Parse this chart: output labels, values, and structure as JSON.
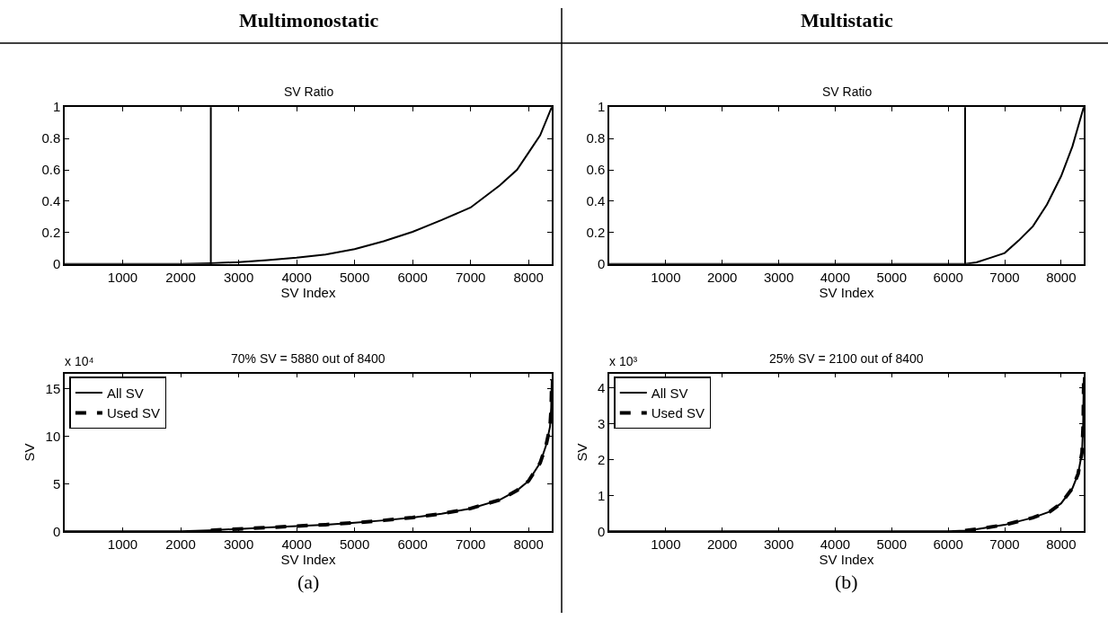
{
  "chart_data": [
    {
      "type": "line",
      "title": "SV Ratio",
      "xlabel": "SV Index",
      "xlim": [
        0,
        8400
      ],
      "xticks": [
        1000,
        2000,
        3000,
        4000,
        5000,
        6000,
        7000,
        8000
      ],
      "ylim": [
        0,
        1
      ],
      "yticks": [
        0,
        0.2,
        0.4,
        0.6,
        0.8,
        1
      ],
      "annotations": [
        "Multimonostatic"
      ],
      "ref_lines": [
        {
          "axis": "x",
          "value": 2520,
          "color": "#000000"
        }
      ],
      "series": [
        {
          "color": "#000000",
          "x": [
            0,
            2000,
            2520,
            3000,
            3500,
            4000,
            4500,
            5000,
            5500,
            6000,
            6500,
            7000,
            7500,
            7800,
            8000,
            8200,
            8400
          ],
          "values": [
            0,
            0,
            0.005,
            0.012,
            0.025,
            0.04,
            0.06,
            0.095,
            0.145,
            0.205,
            0.28,
            0.36,
            0.5,
            0.6,
            0.71,
            0.82,
            1
          ]
        }
      ]
    },
    {
      "type": "line",
      "title": "SV Ratio",
      "xlabel": "SV Index",
      "xlim": [
        0,
        8400
      ],
      "xticks": [
        1000,
        2000,
        3000,
        4000,
        5000,
        6000,
        7000,
        8000
      ],
      "ylim": [
        0,
        1
      ],
      "yticks": [
        0,
        0.2,
        0.4,
        0.6,
        0.8,
        1
      ],
      "annotations": [
        "Multistatic"
      ],
      "ref_lines": [
        {
          "axis": "x",
          "value": 6300,
          "color": "#000000"
        }
      ],
      "series": [
        {
          "color": "#000000",
          "x": [
            0,
            6000,
            6300,
            6500,
            6750,
            7000,
            7250,
            7500,
            7750,
            8000,
            8200,
            8400
          ],
          "values": [
            0,
            0,
            0,
            0.01,
            0.04,
            0.07,
            0.15,
            0.24,
            0.38,
            0.56,
            0.75,
            1
          ]
        }
      ]
    },
    {
      "type": "line",
      "title": "70% SV = 5880 out of 8400",
      "xlabel": "SV Index",
      "ylabel": "SV",
      "xlim": [
        0,
        8400
      ],
      "xticks": [
        1000,
        2000,
        3000,
        4000,
        5000,
        6000,
        7000,
        8000
      ],
      "ylim": [
        0,
        16.6
      ],
      "yticks": [
        0,
        5,
        10,
        15
      ],
      "legend": "top left",
      "annotations": [
        "x 10⁴",
        "(a)"
      ],
      "series": [
        {
          "name": "All SV",
          "color": "#000000",
          "line_style": "solid",
          "x": [
            0,
            2000,
            2500,
            3000,
            3500,
            4000,
            4500,
            5000,
            5500,
            6000,
            6500,
            7000,
            7500,
            7800,
            8000,
            8200,
            8300,
            8370,
            8390,
            8400
          ],
          "values": [
            0,
            0,
            0.1,
            0.25,
            0.4,
            0.55,
            0.7,
            0.9,
            1.15,
            1.45,
            1.85,
            2.4,
            3.3,
            4.3,
            5.3,
            7.2,
            9,
            11,
            13,
            16
          ]
        },
        {
          "name": "Used SV",
          "color": "#000000",
          "line_style": "dashed",
          "x": [
            2520,
            3000,
            3500,
            4000,
            4500,
            5000,
            5500,
            6000,
            6500,
            7000,
            7500,
            7800,
            8000,
            8200,
            8300,
            8370,
            8390,
            8400
          ],
          "values": [
            0.1,
            0.25,
            0.4,
            0.55,
            0.7,
            0.9,
            1.15,
            1.45,
            1.85,
            2.4,
            3.3,
            4.3,
            5.3,
            7.2,
            9,
            11,
            13,
            16
          ]
        }
      ]
    },
    {
      "type": "line",
      "title": "25% SV = 2100 out of 8400",
      "xlabel": "SV Index",
      "ylabel": "SV",
      "xlim": [
        0,
        8400
      ],
      "xticks": [
        1000,
        2000,
        3000,
        4000,
        5000,
        6000,
        7000,
        8000
      ],
      "ylim": [
        0,
        4.4
      ],
      "yticks": [
        0,
        1,
        2,
        3,
        4
      ],
      "legend": "top left",
      "annotations": [
        "x 10³",
        "(b)"
      ],
      "series": [
        {
          "name": "All SV",
          "color": "#000000",
          "line_style": "solid",
          "x": [
            0,
            6000,
            6300,
            6500,
            7000,
            7500,
            7800,
            8000,
            8200,
            8300,
            8370,
            8390,
            8400
          ],
          "values": [
            0,
            0,
            0.02,
            0.06,
            0.18,
            0.38,
            0.55,
            0.78,
            1.2,
            1.6,
            2.2,
            3,
            4.3
          ]
        },
        {
          "name": "Used SV",
          "color": "#000000",
          "line_style": "dashed",
          "x": [
            6300,
            6500,
            7000,
            7500,
            7800,
            8000,
            8200,
            8300,
            8370,
            8390,
            8400
          ],
          "values": [
            0.02,
            0.06,
            0.18,
            0.38,
            0.55,
            0.78,
            1.2,
            1.6,
            2.2,
            3,
            4.3
          ]
        }
      ]
    }
  ]
}
